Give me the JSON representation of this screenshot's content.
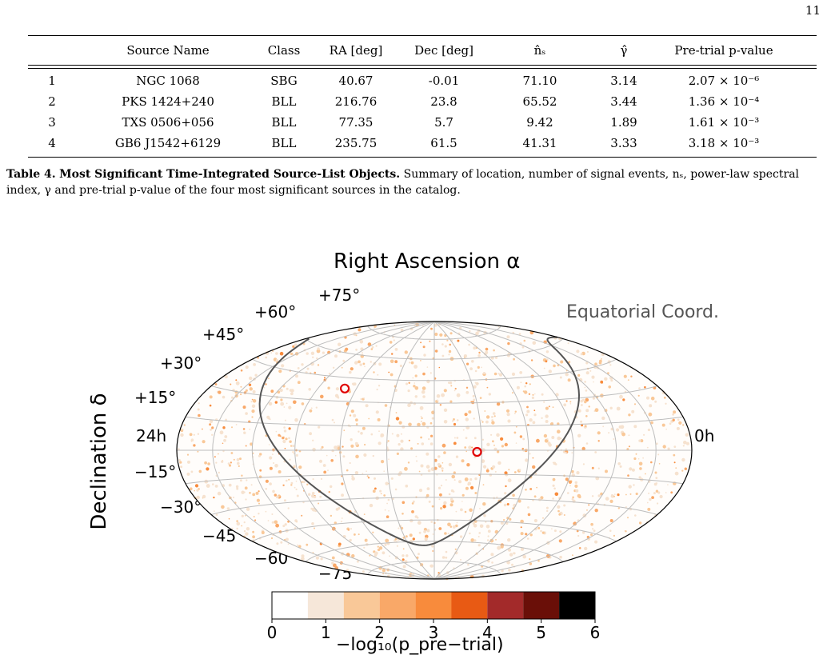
{
  "page_number": "11",
  "table": {
    "headers": [
      "",
      "Source Name",
      "Class",
      "RA [deg]",
      "Dec [deg]",
      "n̂ₛ",
      "γ̂",
      "Pre-trial p-value"
    ],
    "rows": [
      [
        "1",
        "NGC 1068",
        "SBG",
        "40.67",
        "-0.01",
        "71.10",
        "3.14",
        "2.07 × 10⁻⁶"
      ],
      [
        "2",
        "PKS 1424+240",
        "BLL",
        "216.76",
        "23.8",
        "65.52",
        "3.44",
        "1.36 × 10⁻⁴"
      ],
      [
        "3",
        "TXS 0506+056",
        "BLL",
        "77.35",
        "5.7",
        "9.42",
        "1.89",
        "1.61 × 10⁻³"
      ],
      [
        "4",
        "GB6 J1542+6129",
        "BLL",
        "235.75",
        "61.5",
        "41.31",
        "3.33",
        "3.18 × 10⁻³"
      ]
    ]
  },
  "caption": {
    "label": "Table 4.",
    "title": "Most Significant Time-Integrated Source-List Objects.",
    "text": "Summary of location, number of signal events, nₛ, power-law spectral index, γ and pre-trial p-value of the four most significant sources in the catalog."
  },
  "figure": {
    "title": "Right Ascension α",
    "ylabel": "Declination δ",
    "coord_label": "Equatorial Coord.",
    "ra_left": "24h",
    "ra_right": "0h",
    "dec_ticks": [
      "+75°",
      "+60°",
      "+45°",
      "+30°",
      "+15°",
      "−15°",
      "−30°",
      "−45°",
      "−60°",
      "−75°"
    ],
    "colorbar": {
      "colors": [
        "#ffffff",
        "#f6e7d9",
        "#f9c898",
        "#f9a868",
        "#f88b3c",
        "#e85a14",
        "#a32a2a",
        "#6a0f08",
        "#000000"
      ],
      "ticks": [
        "0",
        "1",
        "2",
        "3",
        "4",
        "5",
        "6"
      ],
      "label": "−log₁₀(p_pre−trial)"
    },
    "hotspots_marked": [
      {
        "ra_hours": 16.6,
        "dec_deg": 38
      },
      {
        "ra_hours": 10.2,
        "dec_deg": -1
      }
    ]
  }
}
